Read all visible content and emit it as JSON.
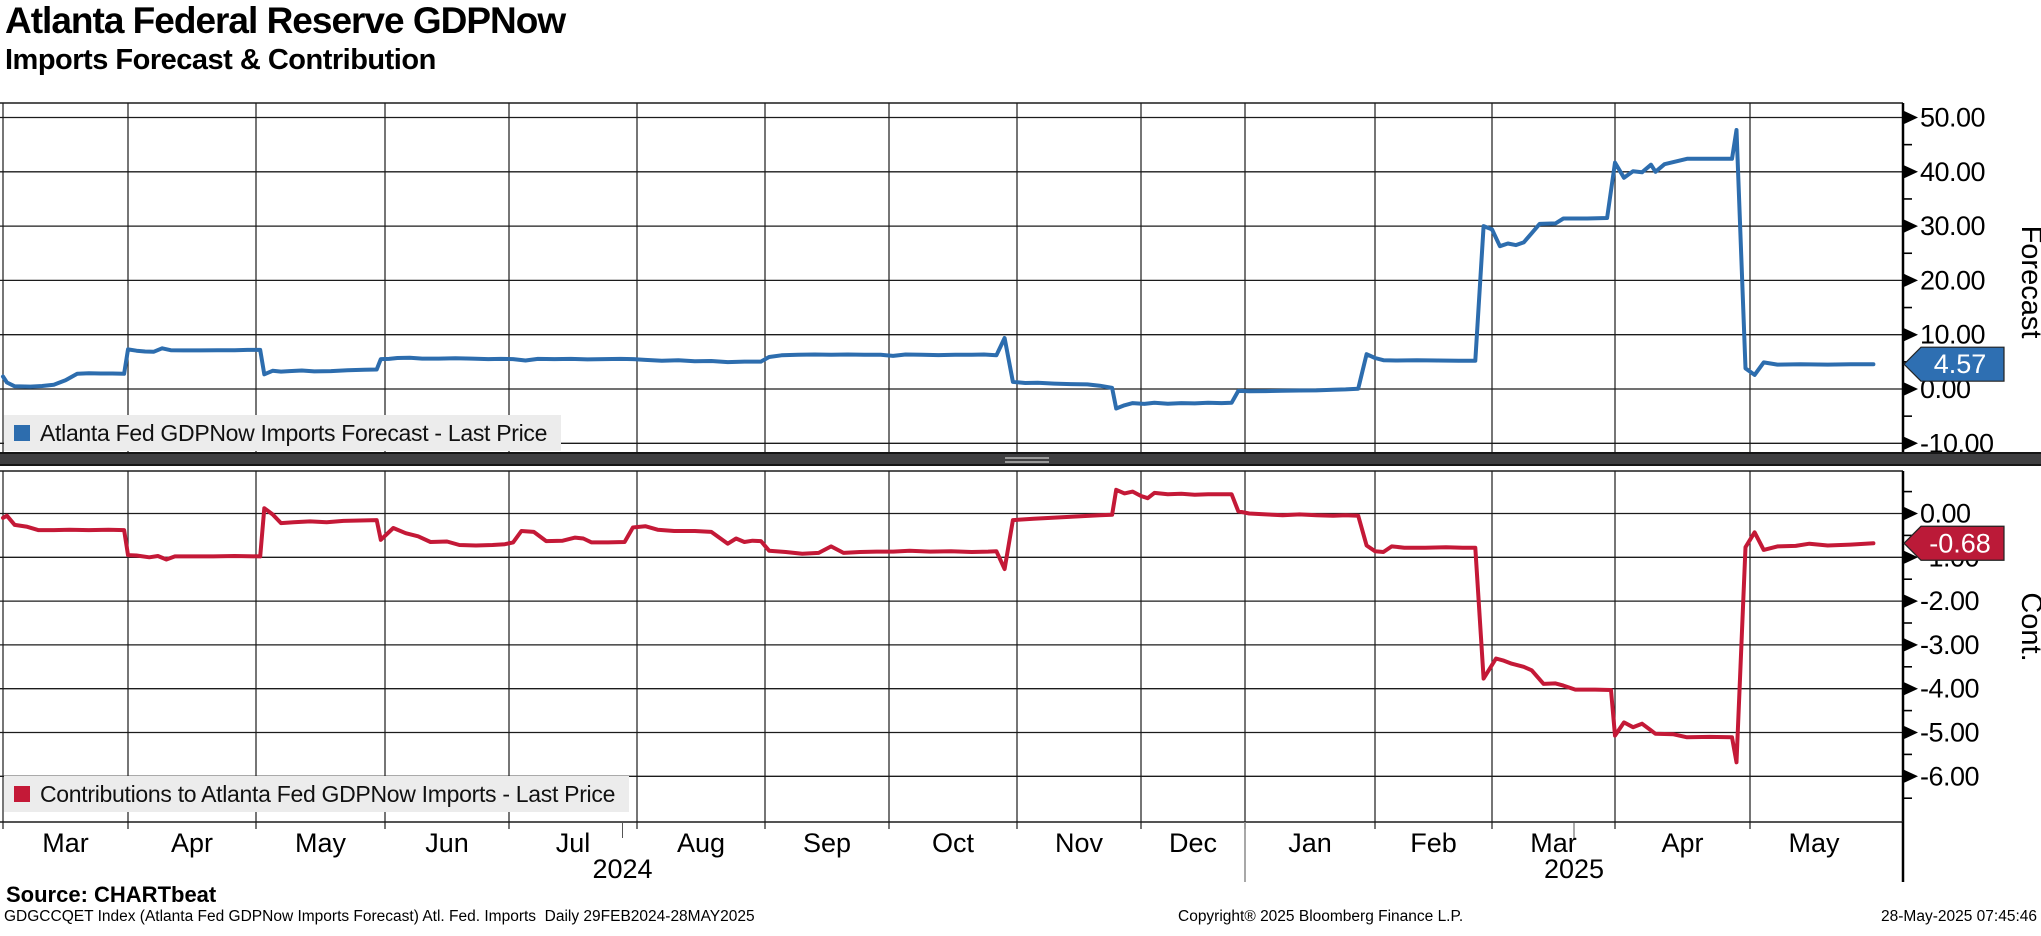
{
  "header": {
    "title": "Atlanta Federal Reserve GDPNow",
    "subtitle": "Imports Forecast & Contribution"
  },
  "panels": {
    "top": {
      "legend_label": "Atlanta Fed GDPNow Imports Forecast - Last Price",
      "axis_title": "Forecast",
      "last_price": "4.57",
      "line_color": "#2d6dae",
      "tag_color": "#2e6fb2",
      "tick_labels": [
        "50.00",
        "40.00",
        "30.00",
        "20.00",
        "10.00",
        "0.00",
        "-10.00"
      ],
      "tick_values": [
        50,
        40,
        30,
        20,
        10,
        0,
        -10
      ]
    },
    "bottom": {
      "legend_label": "Contributions to Atlanta Fed GDPNow Imports - Last Price",
      "axis_title": "Cont.",
      "last_price": "-0.68",
      "line_color": "#c41937",
      "tag_color": "#bb1a38",
      "tick_labels": [
        "0.00",
        "-1.00",
        "-2.00",
        "-3.00",
        "-4.00",
        "-5.00",
        "-6.00"
      ],
      "tick_values": [
        0,
        -1,
        -2,
        -3,
        -4,
        -5,
        -6
      ]
    }
  },
  "x_axis": {
    "month_labels": [
      "Mar",
      "Apr",
      "May",
      "Jun",
      "Jul",
      "Aug",
      "Sep",
      "Oct",
      "Nov",
      "Dec",
      "Jan",
      "Feb",
      "Mar",
      "Apr",
      "May"
    ],
    "year_labels": [
      "2024",
      "2025"
    ]
  },
  "footer": {
    "source": "Source: CHARTbeat",
    "security_line": "GDGCCQET Index (Atlanta Fed GDPNow Imports Forecast) Atl. Fed. Imports  Daily 29FEB2024-28MAY2025",
    "copyright": "Copyright® 2025 Bloomberg Finance L.P.",
    "timestamp": "28-May-2025 07:45:46"
  },
  "chart_data": [
    {
      "type": "line",
      "name": "Atlanta Fed GDPNow Imports Forecast - Last Price",
      "x_unit": "days since 29FEB2024",
      "date_range": "29FEB2024-28MAY2025",
      "ylim": [
        -10,
        50
      ],
      "last_value": 4.57,
      "points": [
        [
          0,
          2.3
        ],
        [
          1,
          1.2
        ],
        [
          3,
          0.5
        ],
        [
          7,
          0.45
        ],
        [
          10,
          0.55
        ],
        [
          13,
          0.8
        ],
        [
          16,
          1.6
        ],
        [
          19,
          2.8
        ],
        [
          22,
          2.9
        ],
        [
          25,
          2.85
        ],
        [
          28,
          2.85
        ],
        [
          31,
          2.8
        ],
        [
          32,
          7.3
        ],
        [
          34,
          7.05
        ],
        [
          36,
          6.9
        ],
        [
          38,
          6.85
        ],
        [
          40,
          7.5
        ],
        [
          42,
          7.15
        ],
        [
          45,
          7.1
        ],
        [
          49,
          7.1
        ],
        [
          53,
          7.15
        ],
        [
          57,
          7.15
        ],
        [
          60,
          7.2
        ],
        [
          63,
          7.2
        ],
        [
          64,
          2.7
        ],
        [
          66,
          3.35
        ],
        [
          68,
          3.2
        ],
        [
          70,
          3.3
        ],
        [
          73,
          3.4
        ],
        [
          76,
          3.25
        ],
        [
          80,
          3.3
        ],
        [
          84,
          3.45
        ],
        [
          88,
          3.55
        ],
        [
          91,
          3.6
        ],
        [
          92,
          5.5
        ],
        [
          94,
          5.55
        ],
        [
          96,
          5.7
        ],
        [
          99,
          5.75
        ],
        [
          102,
          5.6
        ],
        [
          106,
          5.6
        ],
        [
          110,
          5.65
        ],
        [
          114,
          5.6
        ],
        [
          118,
          5.5
        ],
        [
          121,
          5.55
        ],
        [
          124,
          5.5
        ],
        [
          127,
          5.25
        ],
        [
          130,
          5.55
        ],
        [
          134,
          5.5
        ],
        [
          138,
          5.55
        ],
        [
          142,
          5.45
        ],
        [
          146,
          5.5
        ],
        [
          150,
          5.55
        ],
        [
          153,
          5.5
        ],
        [
          156,
          5.35
        ],
        [
          160,
          5.2
        ],
        [
          164,
          5.3
        ],
        [
          168,
          5.1
        ],
        [
          172,
          5.15
        ],
        [
          176,
          4.95
        ],
        [
          180,
          5.05
        ],
        [
          184,
          5.05
        ],
        [
          186,
          5.9
        ],
        [
          189,
          6.2
        ],
        [
          193,
          6.3
        ],
        [
          197,
          6.35
        ],
        [
          201,
          6.3
        ],
        [
          205,
          6.35
        ],
        [
          209,
          6.3
        ],
        [
          213,
          6.3
        ],
        [
          216,
          6.1
        ],
        [
          219,
          6.35
        ],
        [
          223,
          6.3
        ],
        [
          227,
          6.25
        ],
        [
          231,
          6.3
        ],
        [
          235,
          6.3
        ],
        [
          238,
          6.35
        ],
        [
          241,
          6.2
        ],
        [
          243,
          9.4
        ],
        [
          245,
          1.3
        ],
        [
          248,
          1.1
        ],
        [
          251,
          1.15
        ],
        [
          255,
          1.0
        ],
        [
          259,
          0.9
        ],
        [
          263,
          0.85
        ],
        [
          266,
          0.6
        ],
        [
          269,
          0.2
        ],
        [
          270,
          -3.6
        ],
        [
          272,
          -3.0
        ],
        [
          274,
          -2.6
        ],
        [
          277,
          -2.75
        ],
        [
          280,
          -2.55
        ],
        [
          284,
          -2.7
        ],
        [
          288,
          -2.6
        ],
        [
          292,
          -2.65
        ],
        [
          296,
          -2.55
        ],
        [
          300,
          -2.6
        ],
        [
          303,
          -2.55
        ],
        [
          305,
          -0.35
        ],
        [
          308,
          -0.42
        ],
        [
          312,
          -0.38
        ],
        [
          316,
          -0.33
        ],
        [
          320,
          -0.28
        ],
        [
          324,
          -0.25
        ],
        [
          328,
          -0.15
        ],
        [
          331,
          -0.08
        ],
        [
          334,
          0.05
        ],
        [
          336,
          6.4
        ],
        [
          338,
          5.7
        ],
        [
          340,
          5.3
        ],
        [
          343,
          5.25
        ],
        [
          348,
          5.3
        ],
        [
          353,
          5.25
        ],
        [
          358,
          5.2
        ],
        [
          362,
          5.2
        ],
        [
          364,
          30.0
        ],
        [
          366,
          29.4
        ],
        [
          368,
          26.3
        ],
        [
          370,
          26.8
        ],
        [
          372,
          26.5
        ],
        [
          374,
          27.0
        ],
        [
          376,
          28.7
        ],
        [
          378,
          30.4
        ],
        [
          382,
          30.5
        ],
        [
          384,
          31.4
        ],
        [
          390,
          31.4
        ],
        [
          395,
          31.5
        ],
        [
          397,
          41.7
        ],
        [
          399,
          38.9
        ],
        [
          401,
          40.1
        ],
        [
          403,
          39.9
        ],
        [
          405,
          41.3
        ],
        [
          406,
          40.0
        ],
        [
          408,
          41.4
        ],
        [
          413,
          42.4
        ],
        [
          418,
          42.4
        ],
        [
          423,
          42.4
        ],
        [
          424,
          47.7
        ],
        [
          426,
          3.8
        ],
        [
          428,
          2.6
        ],
        [
          430,
          4.9
        ],
        [
          433,
          4.5
        ],
        [
          438,
          4.55
        ],
        [
          444,
          4.5
        ],
        [
          449,
          4.55
        ],
        [
          454,
          4.57
        ]
      ]
    },
    {
      "type": "line",
      "name": "Contributions to Atlanta Fed GDPNow Imports - Last Price",
      "x_unit": "days since 29FEB2024",
      "date_range": "29FEB2024-28MAY2025",
      "ylim": [
        -6.8,
        0.9
      ],
      "last_value": -0.68,
      "points": [
        [
          0,
          -0.1
        ],
        [
          1,
          -0.05
        ],
        [
          3,
          -0.26
        ],
        [
          6,
          -0.3
        ],
        [
          9,
          -0.38
        ],
        [
          13,
          -0.38
        ],
        [
          17,
          -0.37
        ],
        [
          22,
          -0.38
        ],
        [
          27,
          -0.37
        ],
        [
          31,
          -0.38
        ],
        [
          32,
          -0.95
        ],
        [
          34,
          -0.96
        ],
        [
          37,
          -1.0
        ],
        [
          39,
          -0.97
        ],
        [
          41,
          -1.05
        ],
        [
          43,
          -0.98
        ],
        [
          47,
          -0.98
        ],
        [
          52,
          -0.98
        ],
        [
          57,
          -0.97
        ],
        [
          63,
          -0.98
        ],
        [
          64,
          0.12
        ],
        [
          66,
          -0.02
        ],
        [
          68,
          -0.22
        ],
        [
          71,
          -0.2
        ],
        [
          75,
          -0.18
        ],
        [
          79,
          -0.2
        ],
        [
          83,
          -0.17
        ],
        [
          87,
          -0.16
        ],
        [
          91,
          -0.15
        ],
        [
          92,
          -0.6
        ],
        [
          95,
          -0.33
        ],
        [
          98,
          -0.45
        ],
        [
          101,
          -0.52
        ],
        [
          104,
          -0.65
        ],
        [
          108,
          -0.64
        ],
        [
          111,
          -0.72
        ],
        [
          115,
          -0.73
        ],
        [
          119,
          -0.72
        ],
        [
          122,
          -0.7
        ],
        [
          124,
          -0.66
        ],
        [
          126,
          -0.4
        ],
        [
          129,
          -0.42
        ],
        [
          132,
          -0.63
        ],
        [
          136,
          -0.62
        ],
        [
          139,
          -0.55
        ],
        [
          141,
          -0.57
        ],
        [
          143,
          -0.66
        ],
        [
          147,
          -0.66
        ],
        [
          151,
          -0.65
        ],
        [
          153,
          -0.32
        ],
        [
          156,
          -0.29
        ],
        [
          159,
          -0.37
        ],
        [
          163,
          -0.4
        ],
        [
          168,
          -0.4
        ],
        [
          172,
          -0.42
        ],
        [
          176,
          -0.69
        ],
        [
          178,
          -0.57
        ],
        [
          180,
          -0.65
        ],
        [
          182,
          -0.62
        ],
        [
          184,
          -0.63
        ],
        [
          186,
          -0.85
        ],
        [
          190,
          -0.88
        ],
        [
          194,
          -0.92
        ],
        [
          198,
          -0.9
        ],
        [
          201,
          -0.75
        ],
        [
          204,
          -0.9
        ],
        [
          208,
          -0.88
        ],
        [
          212,
          -0.87
        ],
        [
          216,
          -0.87
        ],
        [
          220,
          -0.85
        ],
        [
          225,
          -0.87
        ],
        [
          230,
          -0.86
        ],
        [
          235,
          -0.88
        ],
        [
          239,
          -0.87
        ],
        [
          241,
          -0.86
        ],
        [
          243,
          -1.27
        ],
        [
          245,
          -0.15
        ],
        [
          250,
          -0.12
        ],
        [
          254,
          -0.1
        ],
        [
          258,
          -0.08
        ],
        [
          262,
          -0.06
        ],
        [
          266,
          -0.04
        ],
        [
          269,
          -0.03
        ],
        [
          270,
          0.54
        ],
        [
          272,
          0.46
        ],
        [
          274,
          0.5
        ],
        [
          276,
          0.4
        ],
        [
          278,
          0.35
        ],
        [
          280,
          0.47
        ],
        [
          284,
          0.44
        ],
        [
          288,
          0.45
        ],
        [
          292,
          0.43
        ],
        [
          296,
          0.44
        ],
        [
          300,
          0.44
        ],
        [
          303,
          0.44
        ],
        [
          305,
          0.05
        ],
        [
          308,
          0.0
        ],
        [
          312,
          -0.02
        ],
        [
          316,
          -0.04
        ],
        [
          320,
          -0.02
        ],
        [
          324,
          -0.04
        ],
        [
          328,
          -0.05
        ],
        [
          331,
          -0.04
        ],
        [
          334,
          -0.05
        ],
        [
          336,
          -0.73
        ],
        [
          338,
          -0.86
        ],
        [
          340,
          -0.88
        ],
        [
          342,
          -0.75
        ],
        [
          345,
          -0.78
        ],
        [
          350,
          -0.78
        ],
        [
          355,
          -0.77
        ],
        [
          359,
          -0.78
        ],
        [
          362,
          -0.78
        ],
        [
          364,
          -3.77
        ],
        [
          367,
          -3.31
        ],
        [
          369,
          -3.36
        ],
        [
          371,
          -3.43
        ],
        [
          374,
          -3.5
        ],
        [
          376,
          -3.58
        ],
        [
          379,
          -3.89
        ],
        [
          382,
          -3.88
        ],
        [
          384,
          -3.93
        ],
        [
          387,
          -4.02
        ],
        [
          392,
          -4.02
        ],
        [
          396,
          -4.03
        ],
        [
          397,
          -5.07
        ],
        [
          399,
          -4.77
        ],
        [
          401,
          -4.88
        ],
        [
          403,
          -4.8
        ],
        [
          406,
          -5.03
        ],
        [
          410,
          -5.04
        ],
        [
          413,
          -5.11
        ],
        [
          418,
          -5.1
        ],
        [
          423,
          -5.11
        ],
        [
          424,
          -5.68
        ],
        [
          426,
          -0.77
        ],
        [
          428,
          -0.43
        ],
        [
          430,
          -0.83
        ],
        [
          433,
          -0.75
        ],
        [
          437,
          -0.74
        ],
        [
          440,
          -0.69
        ],
        [
          444,
          -0.73
        ],
        [
          449,
          -0.71
        ],
        [
          454,
          -0.68
        ]
      ]
    }
  ]
}
